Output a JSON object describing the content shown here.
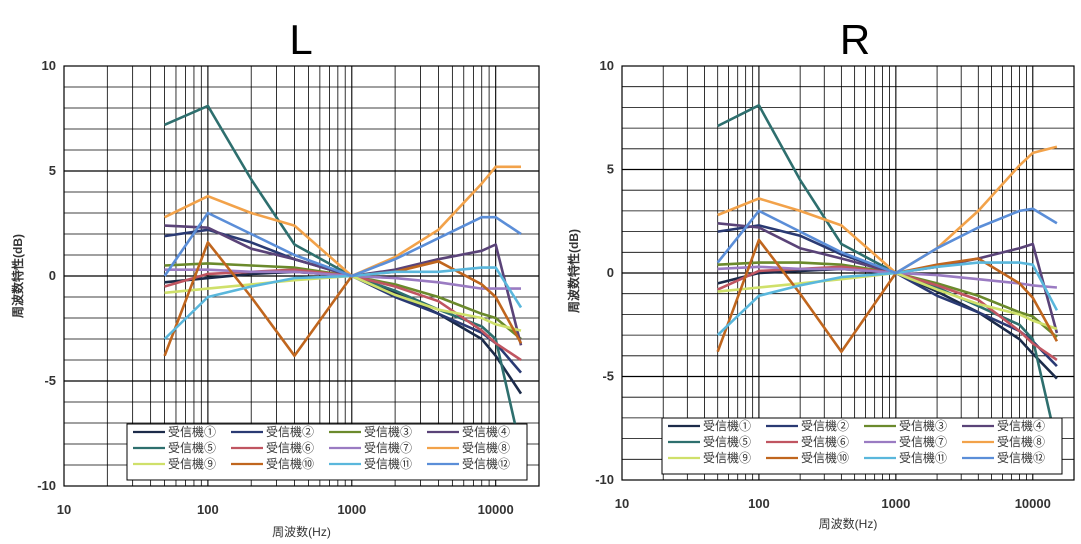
{
  "chart_data": [
    {
      "type": "line",
      "title": "L",
      "xlabel": "周波数(Hz)",
      "ylabel": "周波数特性(dB)",
      "xscale": "log",
      "xlim": [
        10,
        20000
      ],
      "ylim": [
        -10,
        10
      ],
      "x_ticks": [
        "10",
        "100",
        "1000",
        "10000"
      ],
      "y_ticks": [
        "10",
        "5",
        "0",
        "-5",
        "-10"
      ],
      "grid": true,
      "legend": "bottom, inside plot, 4 columns",
      "x": [
        50,
        100,
        200,
        400,
        1000,
        2000,
        4000,
        8000,
        10000,
        15000
      ],
      "series": [
        {
          "name": "受信機①",
          "color": "#1c2b4a",
          "values": [
            -0.3,
            -0.1,
            0.1,
            0.2,
            0,
            -0.8,
            -1.8,
            -3.0,
            -3.8,
            -5.6
          ]
        },
        {
          "name": "受信機②",
          "color": "#2a3a73",
          "values": [
            1.9,
            2.2,
            1.6,
            0.8,
            0,
            -1.0,
            -1.8,
            -2.7,
            -3.2,
            -4.6
          ]
        },
        {
          "name": "受信機③",
          "color": "#6b8a2c",
          "values": [
            0.5,
            0.6,
            0.5,
            0.4,
            0,
            -0.4,
            -1.0,
            -1.8,
            -2.0,
            -3.0
          ]
        },
        {
          "name": "受信機④",
          "color": "#5a4378",
          "values": [
            2.4,
            2.3,
            1.3,
            0.8,
            0,
            0.3,
            0.8,
            1.2,
            1.5,
            -3.3
          ]
        },
        {
          "name": "受信機⑤",
          "color": "#2e6f6e",
          "values": [
            7.2,
            8.1,
            4.6,
            1.5,
            0,
            -0.7,
            -1.6,
            -2.4,
            -3.0,
            -8.3
          ]
        },
        {
          "name": "受信機⑥",
          "color": "#c05561",
          "values": [
            -0.5,
            0.1,
            0.2,
            0.3,
            0,
            -0.5,
            -1.2,
            -2.6,
            -3.2,
            -4.0
          ]
        },
        {
          "name": "受信機⑦",
          "color": "#9a7bc2",
          "values": [
            0.3,
            0.3,
            0.2,
            0.2,
            0,
            -0.1,
            -0.3,
            -0.6,
            -0.6,
            -0.6
          ]
        },
        {
          "name": "受信機⑧",
          "color": "#f2a24a",
          "values": [
            2.8,
            3.8,
            3.0,
            2.4,
            0,
            0.9,
            2.2,
            4.4,
            5.2,
            5.2
          ]
        },
        {
          "name": "受信機⑨",
          "color": "#cfe06a",
          "values": [
            -0.8,
            -0.6,
            -0.4,
            -0.2,
            0,
            -0.9,
            -1.6,
            -2.0,
            -2.3,
            -2.6
          ]
        },
        {
          "name": "受信機⑩",
          "color": "#c0661e",
          "values": [
            -3.8,
            1.6,
            -1.0,
            -3.8,
            0,
            0.2,
            0.7,
            -0.4,
            -1.0,
            -3.2
          ]
        },
        {
          "name": "受信機⑪",
          "color": "#5ab7dc",
          "values": [
            -3.0,
            -1.0,
            -0.5,
            -0.1,
            0,
            0.2,
            0.2,
            0.4,
            0.4,
            -1.5
          ]
        },
        {
          "name": "受信機⑫",
          "color": "#5b8ed8",
          "values": [
            0.0,
            3.0,
            2.0,
            1.0,
            0,
            0.8,
            1.8,
            2.8,
            2.8,
            2.0
          ]
        }
      ]
    },
    {
      "type": "line",
      "title": "R",
      "xlabel": "周波数(Hz)",
      "ylabel": "周波数特性(dB)",
      "xscale": "log",
      "xlim": [
        10,
        20000
      ],
      "ylim": [
        -10,
        10
      ],
      "x_ticks": [
        "10",
        "100",
        "1000",
        "10000"
      ],
      "y_ticks": [
        "10",
        "5",
        "0",
        "-5",
        "-10"
      ],
      "grid": true,
      "legend": "bottom, inside plot, 4 columns",
      "x": [
        50,
        100,
        200,
        400,
        1000,
        2000,
        4000,
        8000,
        10000,
        15000
      ],
      "series": [
        {
          "name": "受信機①",
          "color": "#1c2b4a",
          "values": [
            -0.5,
            0.0,
            0.1,
            0.2,
            0,
            -0.9,
            -1.9,
            -3.2,
            -3.9,
            -5.1
          ]
        },
        {
          "name": "受信機②",
          "color": "#2a3a73",
          "values": [
            2.0,
            2.3,
            1.8,
            0.9,
            0,
            -1.1,
            -1.9,
            -2.8,
            -3.3,
            -4.5
          ]
        },
        {
          "name": "受信機③",
          "color": "#6b8a2c",
          "values": [
            0.4,
            0.5,
            0.5,
            0.4,
            0,
            -0.5,
            -1.1,
            -1.9,
            -2.1,
            -3.1
          ]
        },
        {
          "name": "受信機④",
          "color": "#5a4378",
          "values": [
            2.4,
            2.2,
            1.2,
            0.7,
            0,
            0.3,
            0.7,
            1.2,
            1.4,
            -2.9
          ]
        },
        {
          "name": "受信機⑤",
          "color": "#2e6f6e",
          "values": [
            7.1,
            8.1,
            4.5,
            1.4,
            0,
            -0.7,
            -1.6,
            -2.5,
            -3.2,
            -8.3
          ]
        },
        {
          "name": "受信機⑥",
          "color": "#c05561",
          "values": [
            -0.8,
            0.1,
            0.2,
            0.3,
            0,
            -0.6,
            -1.3,
            -2.8,
            -3.4,
            -4.2
          ]
        },
        {
          "name": "受信機⑦",
          "color": "#9a7bc2",
          "values": [
            0.2,
            0.3,
            0.2,
            0.2,
            0,
            -0.1,
            -0.3,
            -0.5,
            -0.6,
            -0.7
          ]
        },
        {
          "name": "受信機⑧",
          "color": "#f2a24a",
          "values": [
            2.8,
            3.6,
            3.0,
            2.3,
            0,
            1.2,
            3.0,
            5.2,
            5.8,
            6.1
          ]
        },
        {
          "name": "受信機⑨",
          "color": "#cfe06a",
          "values": [
            -0.9,
            -0.7,
            -0.5,
            -0.3,
            0,
            -0.8,
            -1.5,
            -2.0,
            -2.3,
            -2.7
          ]
        },
        {
          "name": "受信機⑩",
          "color": "#c0661e",
          "values": [
            -3.8,
            1.6,
            -1.0,
            -3.8,
            0,
            0.4,
            0.7,
            -0.5,
            -1.2,
            -3.3
          ]
        },
        {
          "name": "受信機⑪",
          "color": "#5ab7dc",
          "values": [
            -3.0,
            -1.1,
            -0.6,
            -0.2,
            0,
            0.3,
            0.5,
            0.5,
            0.4,
            -1.8
          ]
        },
        {
          "name": "受信機⑫",
          "color": "#5b8ed8",
          "values": [
            0.5,
            3.0,
            2.0,
            1.0,
            0,
            1.2,
            2.2,
            3.0,
            3.1,
            2.4
          ]
        }
      ]
    }
  ]
}
